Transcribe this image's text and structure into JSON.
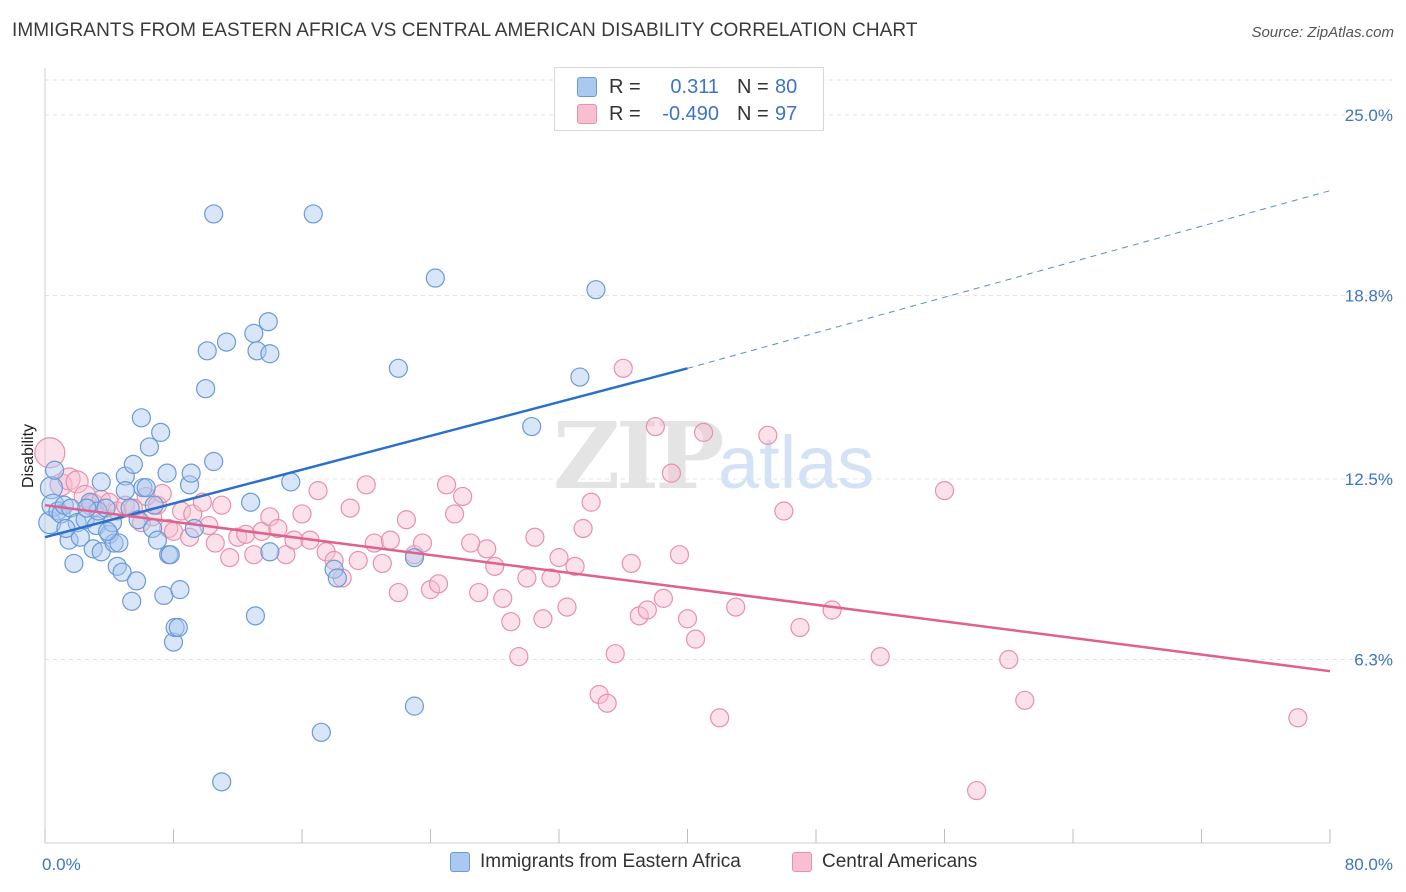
{
  "header": {
    "title": "IMMIGRANTS FROM EASTERN AFRICA VS CENTRAL AMERICAN DISABILITY CORRELATION CHART",
    "source": "Source: ZipAtlas.com"
  },
  "watermark": {
    "zip": "ZIP",
    "atlas": "atlas"
  },
  "legend": {
    "rows": [
      {
        "r_label": "R =",
        "r_value": "0.311",
        "n_label": "N =",
        "n_value": "80"
      },
      {
        "r_label": "R =",
        "r_value": "-0.490",
        "n_label": "N =",
        "n_value": "97"
      }
    ]
  },
  "bottom_legend": {
    "series1": "Immigrants from Eastern Africa",
    "series2": "Central Americans"
  },
  "colors": {
    "blue_fill": "#aac8f0",
    "blue_stroke": "#6a9ad8",
    "blue_line": "#2a6fca",
    "pink_fill": "#f7bfd0",
    "pink_stroke": "#e890ac",
    "pink_line": "#e0608e",
    "tick_text": "#3d74c4"
  },
  "chart_data": {
    "type": "scatter",
    "title": "IMMIGRANTS FROM EASTERN AFRICA VS CENTRAL AMERICAN DISABILITY CORRELATION CHART",
    "xlabel": "",
    "ylabel": "Disability",
    "xlim": [
      0,
      80
    ],
    "ylim": [
      0,
      26.2
    ],
    "x_tick_labels": [
      "0.0%",
      "80.0%"
    ],
    "y_ticks": [
      6.3,
      12.5,
      18.8,
      25.0
    ],
    "y_tick_labels": [
      "6.3%",
      "12.5%",
      "18.8%",
      "25.0%"
    ],
    "grid": true,
    "legend_position": "top-center",
    "series": [
      {
        "name": "Immigrants from Eastern Africa",
        "color": "#aac8f0",
        "r": 0.311,
        "n": 80,
        "trend": {
          "x": [
            0,
            40
          ],
          "y": [
            10.5,
            16.3
          ],
          "dashed_extension_to": [
            80,
            22.4
          ]
        },
        "points": [
          [
            0.3,
            11.0
          ],
          [
            0.4,
            12.2
          ],
          [
            0.5,
            11.6
          ],
          [
            0.8,
            11.4
          ],
          [
            1.0,
            11.3
          ],
          [
            1.2,
            11.6
          ],
          [
            1.5,
            10.4
          ],
          [
            1.6,
            11.5
          ],
          [
            1.8,
            9.6
          ],
          [
            2.0,
            11.0
          ],
          [
            2.2,
            10.5
          ],
          [
            2.5,
            11.1
          ],
          [
            2.8,
            11.7
          ],
          [
            3.0,
            10.1
          ],
          [
            3.2,
            10.9
          ],
          [
            3.3,
            11.4
          ],
          [
            3.5,
            10.0
          ],
          [
            3.5,
            12.4
          ],
          [
            3.8,
            11.5
          ],
          [
            4.0,
            10.6
          ],
          [
            4.2,
            11.0
          ],
          [
            4.3,
            10.3
          ],
          [
            4.5,
            9.5
          ],
          [
            4.6,
            10.3
          ],
          [
            4.8,
            9.3
          ],
          [
            5.0,
            12.6
          ],
          [
            5.0,
            12.1
          ],
          [
            5.3,
            11.5
          ],
          [
            5.4,
            8.3
          ],
          [
            5.5,
            13.0
          ],
          [
            5.7,
            9.0
          ],
          [
            5.8,
            11.1
          ],
          [
            6.0,
            14.6
          ],
          [
            6.1,
            12.2
          ],
          [
            6.3,
            12.2
          ],
          [
            6.5,
            13.6
          ],
          [
            6.7,
            10.8
          ],
          [
            6.8,
            11.6
          ],
          [
            7.0,
            10.4
          ],
          [
            7.2,
            14.1
          ],
          [
            7.4,
            8.5
          ],
          [
            7.6,
            12.7
          ],
          [
            7.7,
            9.9
          ],
          [
            7.8,
            9.9
          ],
          [
            8.0,
            6.9
          ],
          [
            8.1,
            7.4
          ],
          [
            8.3,
            7.4
          ],
          [
            8.4,
            8.7
          ],
          [
            9.0,
            12.3
          ],
          [
            9.1,
            12.7
          ],
          [
            9.3,
            10.8
          ],
          [
            10.0,
            15.6
          ],
          [
            10.1,
            16.9
          ],
          [
            10.5,
            13.1
          ],
          [
            10.5,
            21.6
          ],
          [
            11.3,
            17.2
          ],
          [
            11.0,
            2.1
          ],
          [
            12.8,
            11.7
          ],
          [
            13.1,
            7.8
          ],
          [
            13.0,
            17.5
          ],
          [
            13.2,
            16.9
          ],
          [
            13.9,
            17.9
          ],
          [
            14.0,
            16.8
          ],
          [
            14.0,
            10.0
          ],
          [
            15.3,
            12.4
          ],
          [
            16.7,
            21.6
          ],
          [
            17.2,
            3.8
          ],
          [
            18.0,
            9.4
          ],
          [
            18.2,
            9.1
          ],
          [
            22.0,
            16.3
          ],
          [
            23.0,
            9.8
          ],
          [
            23.0,
            4.7
          ],
          [
            24.3,
            19.4
          ],
          [
            30.3,
            14.3
          ],
          [
            33.3,
            16.0
          ],
          [
            34.3,
            19.0
          ],
          [
            0.6,
            12.8
          ],
          [
            1.3,
            10.8
          ],
          [
            2.6,
            11.5
          ],
          [
            3.9,
            10.7
          ]
        ]
      },
      {
        "name": "Central Americans",
        "color": "#f7bfd0",
        "r": -0.49,
        "n": 97,
        "trend": {
          "x": [
            0,
            80
          ],
          "y": [
            11.6,
            5.9
          ]
        },
        "points": [
          [
            0.3,
            13.4
          ],
          [
            1.0,
            12.3
          ],
          [
            1.5,
            12.5
          ],
          [
            2.0,
            12.4
          ],
          [
            2.5,
            11.9
          ],
          [
            3.0,
            11.6
          ],
          [
            3.5,
            11.8
          ],
          [
            4.0,
            11.7
          ],
          [
            4.5,
            11.4
          ],
          [
            5.0,
            11.6
          ],
          [
            5.5,
            11.5
          ],
          [
            6.0,
            11.0
          ],
          [
            6.3,
            11.9
          ],
          [
            6.7,
            11.2
          ],
          [
            7.0,
            11.6
          ],
          [
            7.3,
            12.0
          ],
          [
            7.7,
            10.8
          ],
          [
            8.0,
            10.7
          ],
          [
            8.5,
            11.4
          ],
          [
            9.0,
            10.5
          ],
          [
            9.2,
            11.3
          ],
          [
            9.8,
            11.7
          ],
          [
            10.2,
            10.9
          ],
          [
            10.6,
            10.3
          ],
          [
            11.0,
            11.6
          ],
          [
            11.5,
            9.8
          ],
          [
            12.0,
            10.5
          ],
          [
            12.5,
            10.6
          ],
          [
            13.0,
            9.9
          ],
          [
            13.5,
            10.7
          ],
          [
            14.0,
            11.2
          ],
          [
            14.5,
            10.8
          ],
          [
            15.0,
            9.9
          ],
          [
            15.5,
            10.4
          ],
          [
            16.0,
            11.3
          ],
          [
            16.5,
            10.4
          ],
          [
            17.0,
            12.1
          ],
          [
            17.5,
            10.0
          ],
          [
            18.0,
            9.7
          ],
          [
            18.5,
            9.1
          ],
          [
            19.0,
            11.5
          ],
          [
            19.5,
            9.7
          ],
          [
            20.0,
            12.3
          ],
          [
            20.5,
            10.3
          ],
          [
            21.0,
            9.6
          ],
          [
            21.5,
            10.4
          ],
          [
            22.0,
            8.6
          ],
          [
            22.5,
            11.1
          ],
          [
            23.0,
            9.9
          ],
          [
            23.5,
            10.3
          ],
          [
            24.0,
            8.7
          ],
          [
            24.5,
            8.9
          ],
          [
            25.0,
            12.3
          ],
          [
            25.5,
            11.3
          ],
          [
            26.0,
            11.9
          ],
          [
            26.5,
            10.3
          ],
          [
            27.0,
            8.6
          ],
          [
            27.5,
            10.1
          ],
          [
            28.0,
            9.5
          ],
          [
            28.5,
            8.4
          ],
          [
            29.0,
            7.6
          ],
          [
            29.5,
            6.4
          ],
          [
            30.0,
            9.1
          ],
          [
            30.5,
            10.5
          ],
          [
            31.0,
            7.7
          ],
          [
            31.5,
            9.1
          ],
          [
            32.0,
            9.8
          ],
          [
            32.5,
            8.1
          ],
          [
            33.0,
            9.5
          ],
          [
            33.5,
            10.8
          ],
          [
            34.0,
            11.7
          ],
          [
            34.5,
            5.1
          ],
          [
            35.0,
            4.8
          ],
          [
            35.5,
            6.5
          ],
          [
            36.0,
            16.3
          ],
          [
            36.5,
            9.6
          ],
          [
            37.0,
            7.8
          ],
          [
            37.5,
            8.0
          ],
          [
            38.0,
            14.3
          ],
          [
            38.5,
            8.4
          ],
          [
            39.0,
            12.7
          ],
          [
            39.5,
            9.9
          ],
          [
            40.0,
            7.7
          ],
          [
            40.5,
            7.0
          ],
          [
            41.0,
            14.1
          ],
          [
            42.0,
            4.3
          ],
          [
            43.0,
            8.1
          ],
          [
            45.0,
            14.0
          ],
          [
            46.0,
            11.4
          ],
          [
            47.0,
            7.4
          ],
          [
            49.0,
            8.0
          ],
          [
            52.0,
            6.4
          ],
          [
            56.0,
            12.1
          ],
          [
            58.0,
            1.8
          ],
          [
            60.0,
            6.3
          ],
          [
            61.0,
            4.9
          ],
          [
            78.0,
            4.3
          ]
        ]
      }
    ]
  }
}
